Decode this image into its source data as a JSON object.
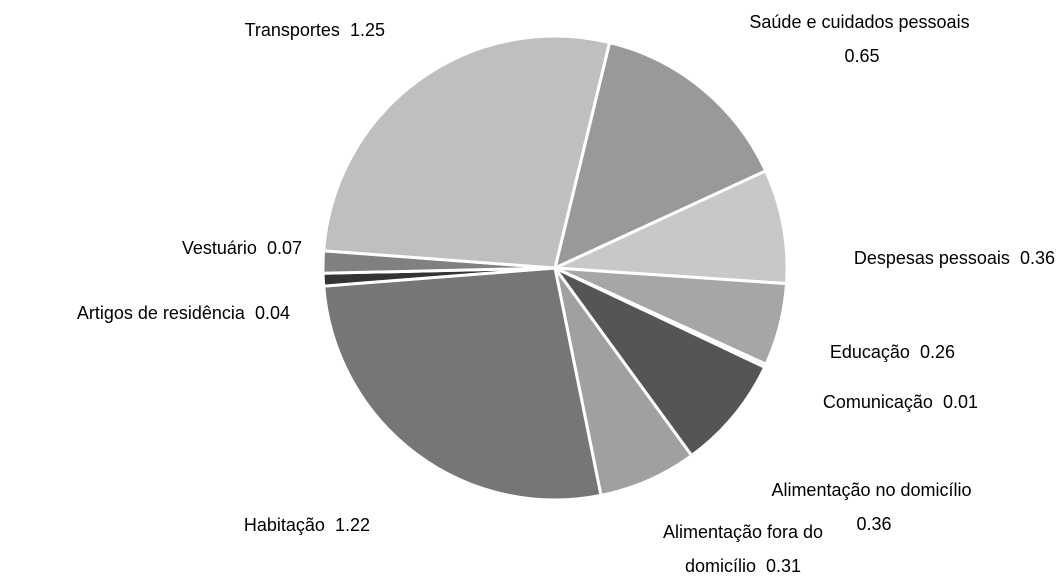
{
  "chart_data": {
    "type": "pie",
    "categories": [
      "Saúde e cuidados pessoais",
      "Despesas pessoais",
      "Educação",
      "Comunicação",
      "Alimentação no domicílio",
      "Alimentação fora do domicílio",
      "Habitação",
      "Artigos de residência",
      "Vestuário",
      "Transportes"
    ],
    "values": [
      0.65,
      0.36,
      0.26,
      0.01,
      0.36,
      0.31,
      1.22,
      0.04,
      0.07,
      1.25
    ],
    "colors": [
      "#999999",
      "#c8c8c8",
      "#a6a6a6",
      "#8c8c8c",
      "#555555",
      "#a0a0a0",
      "#767676",
      "#333333",
      "#808080",
      "#bfbfbf"
    ]
  }
}
